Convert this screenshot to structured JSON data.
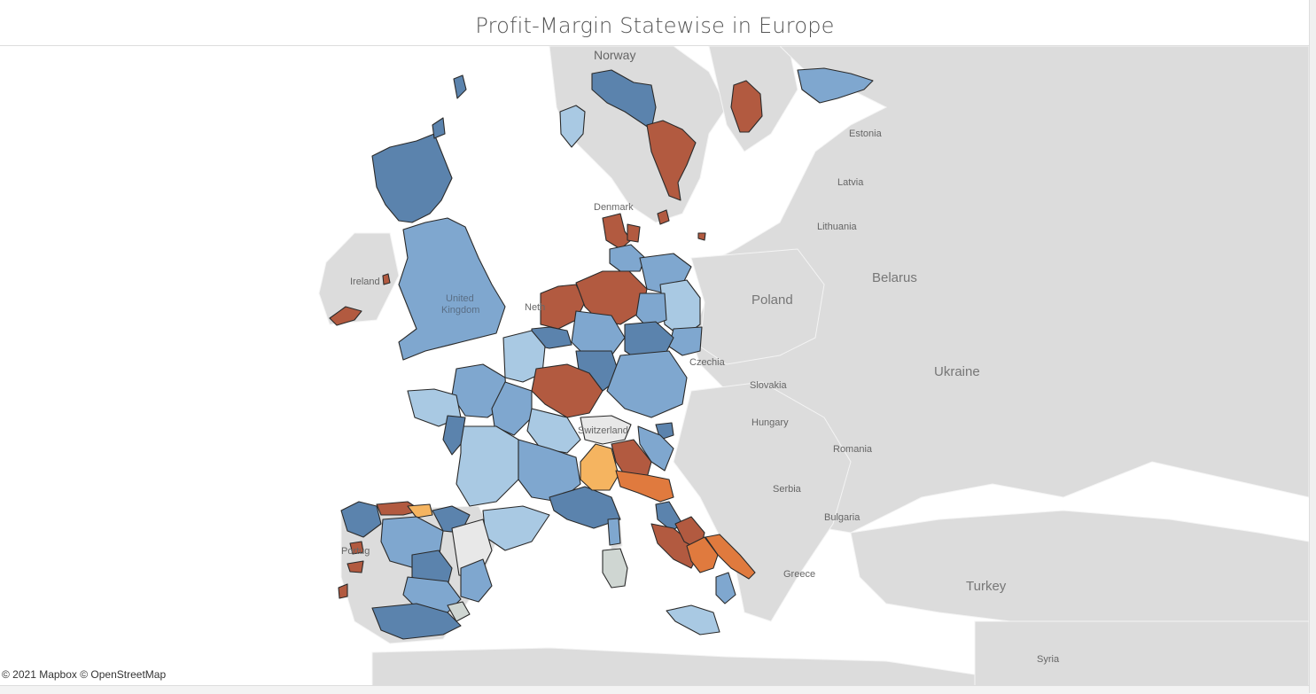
{
  "title": "Profit-Margin Statewise in Europe",
  "attribution": "© 2021 Mapbox © OpenStreetMap",
  "map": {
    "base_labels": {
      "norway": "Norway",
      "estonia": "Estonia",
      "latvia": "Latvia",
      "denmark": "Denmark",
      "lithuania": "Lithuania",
      "ireland": "Ireland",
      "united_kingdom_1": "United",
      "united_kingdom_2": "Kingdom",
      "netherlands": "Neth",
      "belarus": "Belarus",
      "poland": "Poland",
      "czechia": "Czechia",
      "slovakia": "Slovakia",
      "ukraine": "Ukraine",
      "hungary": "Hungary",
      "switzerland": "Switzerland",
      "romania": "Romania",
      "serbia": "Serbia",
      "bulgaria": "Bulgaria",
      "portugal": "Portug",
      "greece": "Greece",
      "turkey": "Turkey",
      "syria": "Syria"
    },
    "colors": {
      "background": "#ffffff",
      "land": "#dcdcdc",
      "strong_positive": "#5b83ad",
      "positive": "#7fa7cf",
      "light_positive": "#a9c9e3",
      "negative": "#b25a40",
      "orange": "#e07a3e",
      "light_orange": "#f5b460",
      "neutral": "#e8e8e8",
      "grey_neutral": "#cfd6d2"
    }
  }
}
